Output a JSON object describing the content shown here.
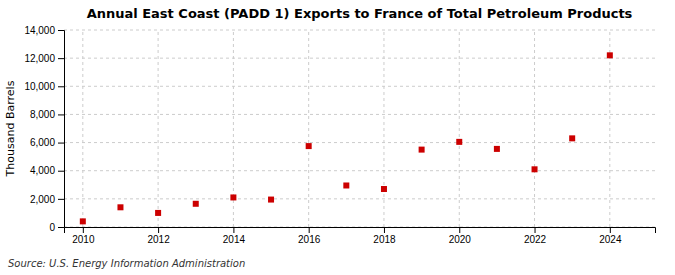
{
  "chart_data": {
    "type": "scatter",
    "title": "Annual East Coast (PADD 1) Exports to France of Total Petroleum Products",
    "ylabel": "Thousand Barrels",
    "annotations": [
      "Source: U.S. Energy Information Administration"
    ],
    "x": [
      2010,
      2011,
      2012,
      2013,
      2014,
      2015,
      2016,
      2017,
      2018,
      2019,
      2020,
      2021,
      2022,
      2023,
      2024
    ],
    "values": [
      400,
      1400,
      1000,
      1650,
      2100,
      1950,
      5750,
      2950,
      2700,
      5500,
      6050,
      5550,
      4100,
      6300,
      12200
    ],
    "color": "#cc0000",
    "marker": "square",
    "xlim": [
      2009.5,
      2025.2
    ],
    "xticks": [
      2010,
      2012,
      2014,
      2016,
      2018,
      2020,
      2022,
      2024
    ],
    "ylim": [
      0,
      14000
    ],
    "yticks": [
      0,
      {
        "value": 2000,
        "label": "2,000"
      },
      {
        "value": 4000,
        "label": "4,000"
      },
      {
        "value": 6000,
        "label": "6,000"
      },
      {
        "value": 8000,
        "label": "8,000"
      },
      {
        "value": 10000,
        "label": "10,000"
      },
      {
        "value": 12000,
        "label": "12,000"
      },
      {
        "value": 14000,
        "label": "14,000"
      }
    ],
    "grid": true
  }
}
